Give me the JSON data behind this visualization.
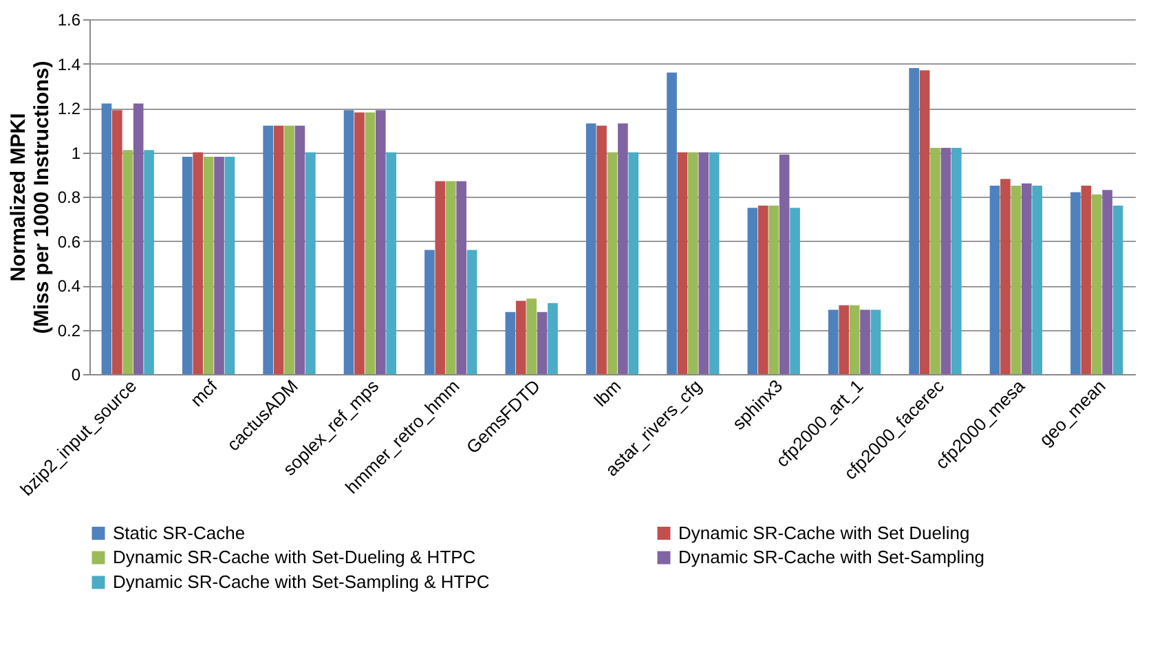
{
  "chart_data": {
    "type": "bar",
    "ylabel": "Normalized MPKI\n(Miss per 1000 Instructions)",
    "categories": [
      "bzip2_input_source",
      "mcf",
      "cactusADM",
      "soplex_ref_mps",
      "hmmer_retro_hmm",
      "GemsFDTD",
      "lbm",
      "astar_rivers_cfg",
      "sphinx3",
      "cfp2000_art_1",
      "cfp2000_facerec",
      "cfp2000_mesa",
      "geo_mean"
    ],
    "series": [
      {
        "name": "Static SR-Cache",
        "color": "#4f81bd",
        "values": [
          1.22,
          0.98,
          1.12,
          1.19,
          0.56,
          0.28,
          1.13,
          1.36,
          0.75,
          0.29,
          1.38,
          0.85,
          0.82
        ]
      },
      {
        "name": "Dynamic SR-Cache with Set Dueling",
        "color": "#c0504d",
        "values": [
          1.19,
          1.0,
          1.12,
          1.18,
          0.87,
          0.33,
          1.12,
          1.0,
          0.76,
          0.31,
          1.37,
          0.88,
          0.85
        ]
      },
      {
        "name": "Dynamic SR-Cache with Set-Dueling & HTPC",
        "color": "#9bbb59",
        "values": [
          1.01,
          0.98,
          1.12,
          1.18,
          0.87,
          0.34,
          1.0,
          1.0,
          0.76,
          0.31,
          1.02,
          0.85,
          0.81
        ]
      },
      {
        "name": "Dynamic SR-Cache with Set-Sampling",
        "color": "#8064a2",
        "values": [
          1.22,
          0.98,
          1.12,
          1.19,
          0.87,
          0.28,
          1.13,
          1.0,
          0.99,
          0.29,
          1.02,
          0.86,
          0.83
        ]
      },
      {
        "name": "Dynamic SR-Cache with Set-Sampling & HTPC",
        "color": "#4bacc6",
        "values": [
          1.01,
          0.98,
          1.0,
          1.0,
          0.56,
          0.32,
          1.0,
          1.0,
          0.75,
          0.29,
          1.02,
          0.85,
          0.76
        ]
      }
    ],
    "ylim": [
      0,
      1.6
    ],
    "yticks": [
      0,
      0.2,
      0.4,
      0.6,
      0.8,
      1,
      1.2,
      1.4,
      1.6
    ],
    "grid": true,
    "legend": "bottom"
  }
}
